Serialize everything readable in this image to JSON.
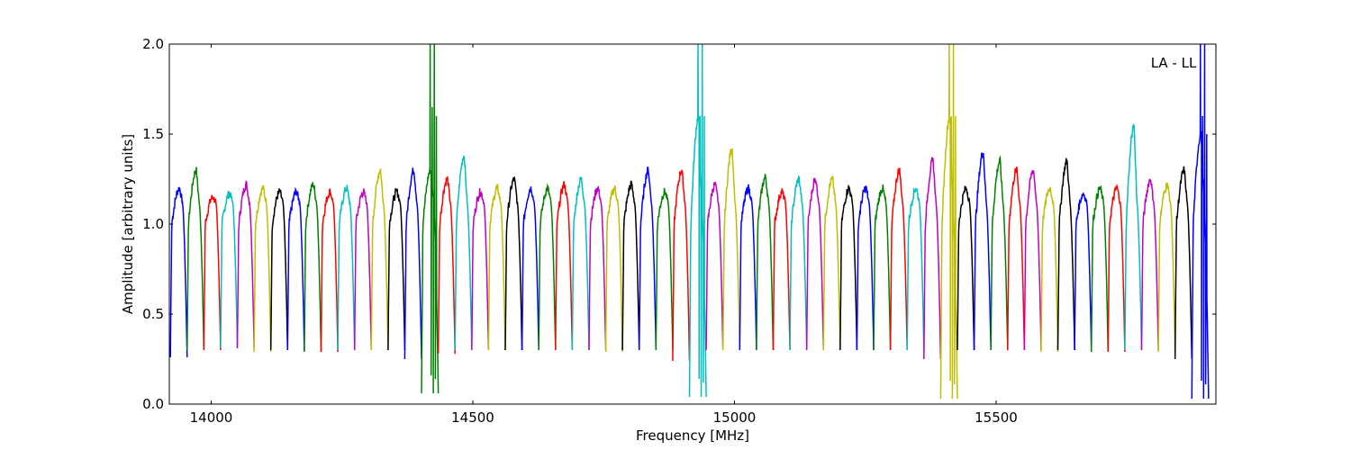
{
  "chart_data": {
    "type": "line",
    "title": "",
    "annotation": "LA - LL",
    "xlabel": "Frequency [MHz]",
    "ylabel": "Amplitude [arbitrary units]",
    "xlim": [
      13920,
      15920
    ],
    "ylim": [
      0,
      2.0
    ],
    "xticks": [
      14000,
      14500,
      15000,
      15500
    ],
    "yticks": [
      0.0,
      0.5,
      1.0,
      1.5,
      2.0
    ],
    "ytick_labels": [
      "0.0",
      "0.5",
      "1.0",
      "1.5",
      "2.0"
    ],
    "grid": false,
    "legend": "none",
    "color_cycle": [
      "#0000ff",
      "#ff0000",
      "#00bfbf",
      "#bf00bf",
      "#bfbf00",
      "#000000",
      "#008000"
    ],
    "channel_start_mhz": 13922,
    "channel_width_mhz": 32,
    "series": [
      {
        "x_start": 13922,
        "x_end": 13954,
        "color": "#0000ff",
        "top": 1.2,
        "dip": 0.26
      },
      {
        "x_start": 13954,
        "x_end": 13986,
        "color": "#008000",
        "top": 1.3,
        "dip": 0.3
      },
      {
        "x_start": 13986,
        "x_end": 14018,
        "color": "#ff0000",
        "top": 1.15,
        "dip": 0.3
      },
      {
        "x_start": 14018,
        "x_end": 14050,
        "color": "#00bfbf",
        "top": 1.17,
        "dip": 0.31
      },
      {
        "x_start": 14050,
        "x_end": 14082,
        "color": "#bf00bf",
        "top": 1.22,
        "dip": 0.31
      },
      {
        "x_start": 14082,
        "x_end": 14114,
        "color": "#bfbf00",
        "top": 1.2,
        "dip": 0.29
      },
      {
        "x_start": 14114,
        "x_end": 14146,
        "color": "#000000",
        "top": 1.18,
        "dip": 0.3
      },
      {
        "x_start": 14146,
        "x_end": 14178,
        "color": "#0000ff",
        "top": 1.18,
        "dip": 0.3
      },
      {
        "x_start": 14178,
        "x_end": 14210,
        "color": "#008000",
        "top": 1.22,
        "dip": 0.29
      },
      {
        "x_start": 14210,
        "x_end": 14242,
        "color": "#ff0000",
        "top": 1.18,
        "dip": 0.29
      },
      {
        "x_start": 14242,
        "x_end": 14274,
        "color": "#00bfbf",
        "top": 1.2,
        "dip": 0.3
      },
      {
        "x_start": 14274,
        "x_end": 14306,
        "color": "#bf00bf",
        "top": 1.18,
        "dip": 0.3
      },
      {
        "x_start": 14306,
        "x_end": 14338,
        "color": "#bfbf00",
        "top": 1.3,
        "dip": 0.3
      },
      {
        "x_start": 14338,
        "x_end": 14370,
        "color": "#000000",
        "top": 1.18,
        "dip": 0.3
      },
      {
        "x_start": 14370,
        "x_end": 14402,
        "color": "#0000ff",
        "top": 1.3,
        "dip": 0.25
      },
      {
        "x_start": 14402,
        "x_end": 14434,
        "color": "#008000",
        "top": 1.3,
        "dip": 0.06,
        "spikes": [
          2.0,
          1.65,
          2.0,
          1.6
        ]
      },
      {
        "x_start": 14434,
        "x_end": 14466,
        "color": "#ff0000",
        "top": 1.25,
        "dip": 0.28
      },
      {
        "x_start": 14466,
        "x_end": 14498,
        "color": "#00bfbf",
        "top": 1.38,
        "dip": 0.3
      },
      {
        "x_start": 14498,
        "x_end": 14530,
        "color": "#bf00bf",
        "top": 1.18,
        "dip": 0.3
      },
      {
        "x_start": 14530,
        "x_end": 14562,
        "color": "#bfbf00",
        "top": 1.2,
        "dip": 0.3
      },
      {
        "x_start": 14562,
        "x_end": 14594,
        "color": "#000000",
        "top": 1.25,
        "dip": 0.3
      },
      {
        "x_start": 14594,
        "x_end": 14626,
        "color": "#0000ff",
        "top": 1.2,
        "dip": 0.3
      },
      {
        "x_start": 14626,
        "x_end": 14658,
        "color": "#008000",
        "top": 1.2,
        "dip": 0.3
      },
      {
        "x_start": 14658,
        "x_end": 14690,
        "color": "#ff0000",
        "top": 1.22,
        "dip": 0.3
      },
      {
        "x_start": 14690,
        "x_end": 14722,
        "color": "#00bfbf",
        "top": 1.25,
        "dip": 0.3
      },
      {
        "x_start": 14722,
        "x_end": 14754,
        "color": "#bf00bf",
        "top": 1.2,
        "dip": 0.3
      },
      {
        "x_start": 14754,
        "x_end": 14786,
        "color": "#bfbf00",
        "top": 1.2,
        "dip": 0.29
      },
      {
        "x_start": 14786,
        "x_end": 14818,
        "color": "#000000",
        "top": 1.22,
        "dip": 0.3
      },
      {
        "x_start": 14818,
        "x_end": 14850,
        "color": "#0000ff",
        "top": 1.3,
        "dip": 0.3
      },
      {
        "x_start": 14850,
        "x_end": 14882,
        "color": "#008000",
        "top": 1.18,
        "dip": 0.3
      },
      {
        "x_start": 14882,
        "x_end": 14914,
        "color": "#ff0000",
        "top": 1.3,
        "dip": 0.24
      },
      {
        "x_start": 14914,
        "x_end": 14946,
        "color": "#00bfbf",
        "top": 1.6,
        "dip": 0.04,
        "spikes": [
          2.0,
          1.6,
          2.0,
          1.6
        ]
      },
      {
        "x_start": 14946,
        "x_end": 14978,
        "color": "#bf00bf",
        "top": 1.22,
        "dip": 0.3
      },
      {
        "x_start": 14978,
        "x_end": 15010,
        "color": "#bfbf00",
        "top": 1.42,
        "dip": 0.3
      },
      {
        "x_start": 15010,
        "x_end": 15042,
        "color": "#0000ff",
        "top": 1.2,
        "dip": 0.3
      },
      {
        "x_start": 15042,
        "x_end": 15074,
        "color": "#008000",
        "top": 1.26,
        "dip": 0.3
      },
      {
        "x_start": 15074,
        "x_end": 15106,
        "color": "#ff0000",
        "top": 1.18,
        "dip": 0.3
      },
      {
        "x_start": 15106,
        "x_end": 15138,
        "color": "#00bfbf",
        "top": 1.25,
        "dip": 0.3
      },
      {
        "x_start": 15138,
        "x_end": 15170,
        "color": "#bf00bf",
        "top": 1.25,
        "dip": 0.3
      },
      {
        "x_start": 15170,
        "x_end": 15202,
        "color": "#bfbf00",
        "top": 1.25,
        "dip": 0.3
      },
      {
        "x_start": 15202,
        "x_end": 15234,
        "color": "#000000",
        "top": 1.2,
        "dip": 0.3
      },
      {
        "x_start": 15234,
        "x_end": 15266,
        "color": "#0000ff",
        "top": 1.2,
        "dip": 0.3
      },
      {
        "x_start": 15266,
        "x_end": 15298,
        "color": "#008000",
        "top": 1.2,
        "dip": 0.3
      },
      {
        "x_start": 15298,
        "x_end": 15330,
        "color": "#ff0000",
        "top": 1.3,
        "dip": 0.3
      },
      {
        "x_start": 15330,
        "x_end": 15362,
        "color": "#00bfbf",
        "top": 1.2,
        "dip": 0.3
      },
      {
        "x_start": 15362,
        "x_end": 15394,
        "color": "#bf00bf",
        "top": 1.35,
        "dip": 0.25
      },
      {
        "x_start": 15394,
        "x_end": 15426,
        "color": "#bfbf00",
        "top": 1.6,
        "dip": 0.03,
        "spikes": [
          2.0,
          1.6,
          2.0,
          1.6
        ]
      },
      {
        "x_start": 15426,
        "x_end": 15458,
        "color": "#000000",
        "top": 1.2,
        "dip": 0.3
      },
      {
        "x_start": 15458,
        "x_end": 15490,
        "color": "#0000ff",
        "top": 1.4,
        "dip": 0.3
      },
      {
        "x_start": 15490,
        "x_end": 15522,
        "color": "#008000",
        "top": 1.35,
        "dip": 0.3
      },
      {
        "x_start": 15522,
        "x_end": 15554,
        "color": "#ff0000",
        "top": 1.3,
        "dip": 0.3
      },
      {
        "x_start": 15554,
        "x_end": 15586,
        "color": "#bf00bf",
        "top": 1.3,
        "dip": 0.3
      },
      {
        "x_start": 15586,
        "x_end": 15618,
        "color": "#bfbf00",
        "top": 1.2,
        "dip": 0.29
      },
      {
        "x_start": 15618,
        "x_end": 15650,
        "color": "#000000",
        "top": 1.35,
        "dip": 0.3
      },
      {
        "x_start": 15650,
        "x_end": 15682,
        "color": "#0000ff",
        "top": 1.17,
        "dip": 0.3
      },
      {
        "x_start": 15682,
        "x_end": 15714,
        "color": "#008000",
        "top": 1.2,
        "dip": 0.29
      },
      {
        "x_start": 15714,
        "x_end": 15746,
        "color": "#ff0000",
        "top": 1.2,
        "dip": 0.29
      },
      {
        "x_start": 15746,
        "x_end": 15778,
        "color": "#00bfbf",
        "top": 1.55,
        "dip": 0.3
      },
      {
        "x_start": 15778,
        "x_end": 15810,
        "color": "#bf00bf",
        "top": 1.25,
        "dip": 0.3
      },
      {
        "x_start": 15810,
        "x_end": 15842,
        "color": "#bfbf00",
        "top": 1.22,
        "dip": 0.29
      },
      {
        "x_start": 15842,
        "x_end": 15874,
        "color": "#000000",
        "top": 1.3,
        "dip": 0.25
      },
      {
        "x_start": 15874,
        "x_end": 15906,
        "color": "#0000ff",
        "top": 1.5,
        "dip": 0.03,
        "spikes": [
          2.0,
          1.6,
          2.0,
          1.5
        ]
      }
    ]
  }
}
